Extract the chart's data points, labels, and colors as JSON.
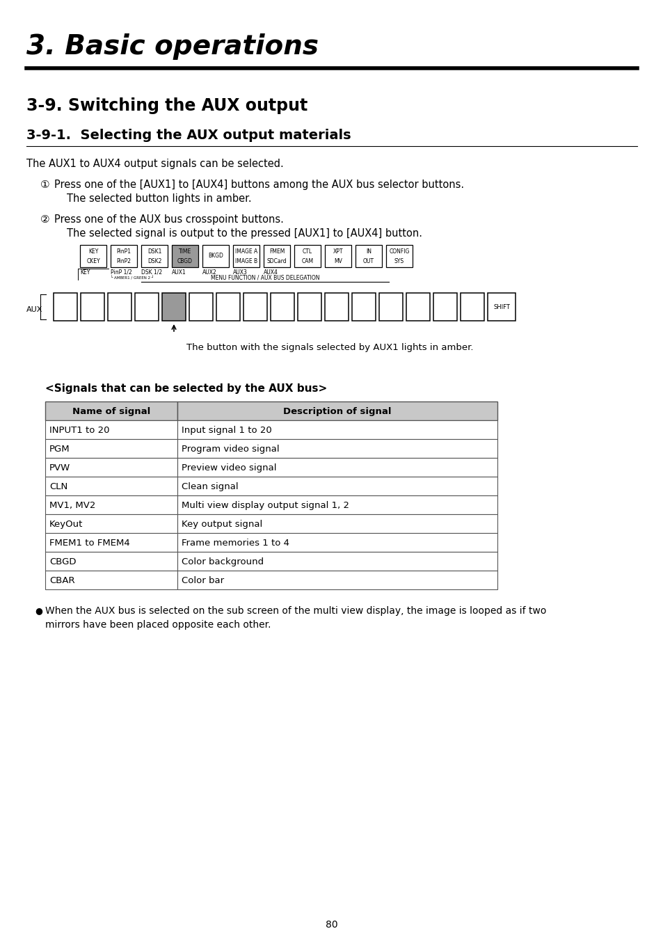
{
  "title": "3. Basic operations",
  "section_title": "3-9. Switching the AUX output",
  "subsection_title": "3-9-1.  Selecting the AUX output materials",
  "intro_text": "The AUX1 to AUX4 output signals can be selected.",
  "step1_circle": "①",
  "step1_text1": "Press one of the [AUX1] to [AUX4] buttons among the AUX bus selector buttons.",
  "step1_text2": "The selected button lights in amber.",
  "step2_circle": "②",
  "step2_text1": "Press one of the AUX bus crosspoint buttons.",
  "step2_text2": "The selected signal is output to the pressed [AUX1] to [AUX4] button.",
  "diagram_caption": "The button with the signals selected by AUX1 lights in amber.",
  "panel_buttons": [
    {
      "lines": [
        "KEY",
        "CKEY"
      ],
      "highlight": false
    },
    {
      "lines": [
        "PinP1",
        "PinP2"
      ],
      "highlight": false
    },
    {
      "lines": [
        "DSK1",
        "DSK2"
      ],
      "highlight": false
    },
    {
      "lines": [
        "TIME",
        "CBGD"
      ],
      "highlight": true
    },
    {
      "lines": [
        "BKGD",
        ""
      ],
      "highlight": false
    },
    {
      "lines": [
        "IMAGE A",
        "IMAGE B"
      ],
      "highlight": false
    },
    {
      "lines": [
        "FMEM",
        "SDCard"
      ],
      "highlight": false
    },
    {
      "lines": [
        "CTL",
        "CAM"
      ],
      "highlight": false
    },
    {
      "lines": [
        "XPT",
        "MV"
      ],
      "highlight": false
    },
    {
      "lines": [
        "IN",
        "OUT"
      ],
      "highlight": false
    },
    {
      "lines": [
        "CONFIG",
        "SYS"
      ],
      "highlight": false
    }
  ],
  "aux_buttons_count": 16,
  "aux_highlighted_idx": 4,
  "signals_title": "<Signals that can be selected by the AUX bus>",
  "table_headers": [
    "Name of signal",
    "Description of signal"
  ],
  "table_rows": [
    [
      "INPUT1 to 20",
      "Input signal 1 to 20"
    ],
    [
      "PGM",
      "Program video signal"
    ],
    [
      "PVW",
      "Preview video signal"
    ],
    [
      "CLN",
      "Clean signal"
    ],
    [
      "MV1, MV2",
      "Multi view display output signal 1, 2"
    ],
    [
      "KeyOut",
      "Key output signal"
    ],
    [
      "FMEM1 to FMEM4",
      "Frame memories 1 to 4"
    ],
    [
      "CBGD",
      "Color background"
    ],
    [
      "CBAR",
      "Color bar"
    ]
  ],
  "bullet_text1": "When the AUX bus is selected on the sub screen of the multi view display, the image is looped as if two",
  "bullet_text2": "mirrors have been placed opposite each other.",
  "page_number": "80",
  "bg_color": "#ffffff",
  "table_header_bg": "#c8c8c8",
  "table_border_color": "#555555",
  "highlight_color": "#999999",
  "text_color": "#000000"
}
